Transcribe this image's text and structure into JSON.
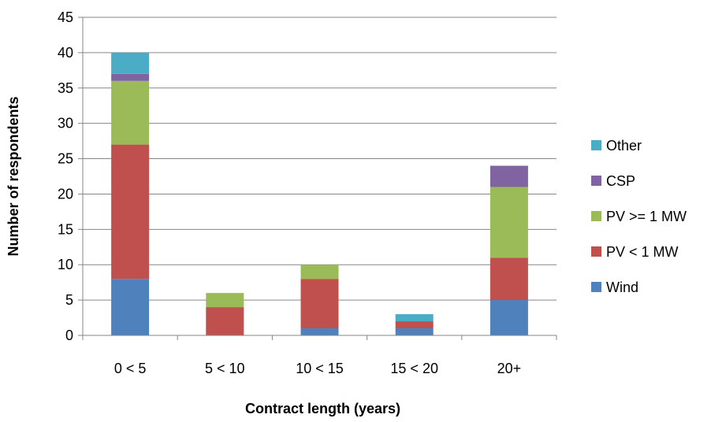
{
  "chart_data": {
    "type": "bar",
    "stacked": true,
    "categories": [
      "0 < 5",
      "5 < 10",
      "10 < 15",
      "15 < 20",
      "20+"
    ],
    "series": [
      {
        "name": "Wind",
        "color": "#4F81BD",
        "values": [
          8,
          0,
          1,
          1,
          5
        ]
      },
      {
        "name": "PV < 1 MW",
        "color": "#C0504D",
        "values": [
          19,
          4,
          7,
          1,
          6
        ]
      },
      {
        "name": "PV >= 1 MW",
        "color": "#9BBB59",
        "values": [
          9,
          2,
          2,
          0,
          10
        ]
      },
      {
        "name": "CSP",
        "color": "#8064A2",
        "values": [
          1,
          0,
          0,
          0,
          3
        ]
      },
      {
        "name": "Other",
        "color": "#4BACC6",
        "values": [
          3,
          0,
          0,
          1,
          0
        ]
      }
    ],
    "xlabel": "Contract length (years)",
    "ylabel": "Number of respondents",
    "ylim": [
      0,
      45
    ],
    "yticks": [
      0,
      5,
      10,
      15,
      20,
      25,
      30,
      35,
      40,
      45
    ],
    "grid": true,
    "legend_position": "right"
  }
}
